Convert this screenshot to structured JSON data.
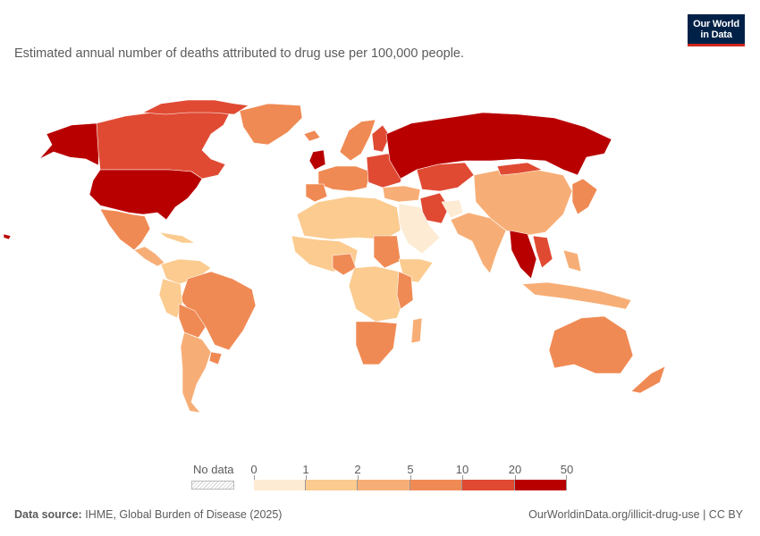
{
  "subtitle": "Estimated annual number of deaths attributed to drug use per 100,000 people.",
  "logo": {
    "line1": "Our World",
    "line2": "in Data"
  },
  "legend": {
    "no_data_label": "No data",
    "thresholds": [
      "0",
      "1",
      "2",
      "5",
      "10",
      "20",
      "50"
    ],
    "colors": [
      "#fdebd3",
      "#fbcb90",
      "#f7ae76",
      "#f08a54",
      "#e04a33",
      "#b80000"
    ]
  },
  "footer": {
    "source_label": "Data source:",
    "source_text": "IHME, Global Burden of Disease (2025)",
    "url": "OurWorldinData.org/illicit-drug-use | CC BY"
  },
  "map_colors": {
    "ocean": "#ffffff",
    "border": "#ffffff"
  }
}
